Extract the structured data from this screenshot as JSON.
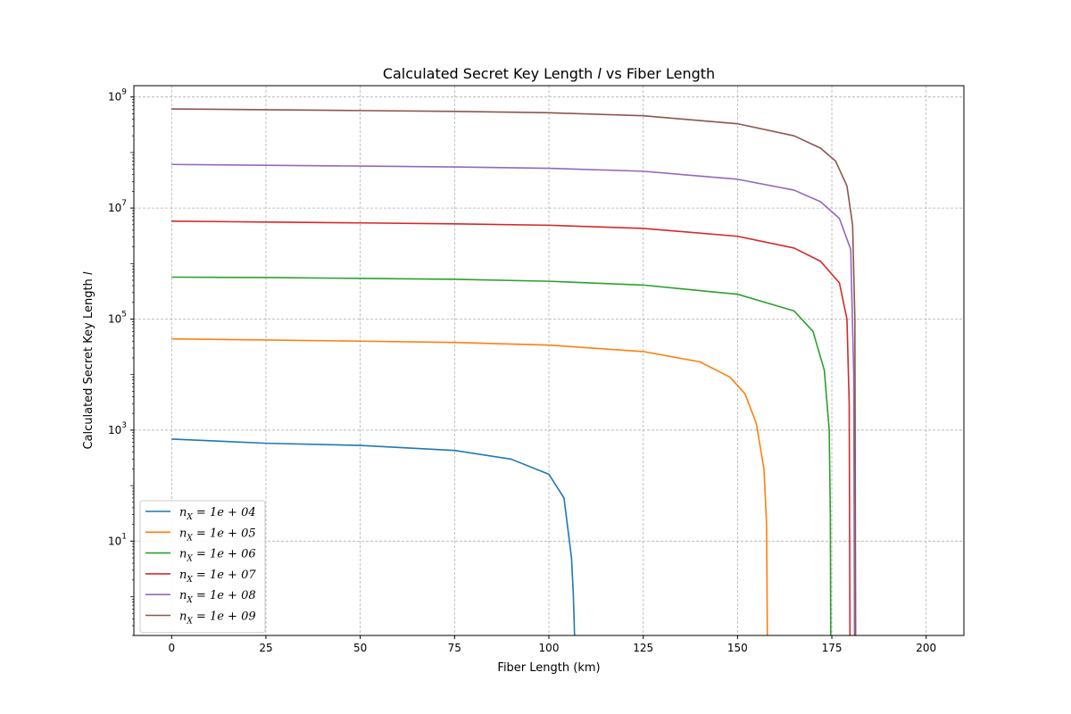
{
  "chart_data": {
    "type": "line",
    "title": "Calculated Secret Key Length l vs Fiber Length",
    "xlabel": "Fiber Length (km)",
    "ylabel": "Calculated Secret Key Length l",
    "x_scale": "linear",
    "y_scale": "log",
    "xlim": [
      -10,
      210
    ],
    "ylim": [
      0.2,
      1600000000.0
    ],
    "x_ticks": [
      0,
      25,
      50,
      75,
      100,
      125,
      150,
      175,
      200
    ],
    "x_tick_labels": [
      "0",
      "25",
      "50",
      "75",
      "100",
      "125",
      "150",
      "175",
      "200"
    ],
    "y_ticks": [
      10,
      1000,
      100000,
      10000000,
      1000000000
    ],
    "y_tick_labels": [
      {
        "base": "10",
        "exp": "1"
      },
      {
        "base": "10",
        "exp": "3"
      },
      {
        "base": "10",
        "exp": "5"
      },
      {
        "base": "10",
        "exp": "7"
      },
      {
        "base": "10",
        "exp": "9"
      }
    ],
    "grid": true,
    "legend_position": "lower-left",
    "series": [
      {
        "name": "n_X = 1e + 04",
        "color": "#1f77b4",
        "x": [
          0,
          25,
          50,
          75,
          90,
          100,
          104,
          106,
          106.5,
          106.8
        ],
        "y": [
          690,
          580,
          530,
          430,
          300,
          160,
          60,
          5,
          1,
          0.2
        ]
      },
      {
        "name": "n_X = 1e + 05",
        "color": "#ff7f0e",
        "x": [
          0,
          25,
          50,
          75,
          100,
          125,
          140,
          148,
          152,
          155,
          157,
          157.7,
          157.9
        ],
        "y": [
          44000,
          42000,
          40000,
          38000,
          34000,
          26000,
          17000,
          9000,
          4500,
          1300,
          200,
          20,
          0.2
        ]
      },
      {
        "name": "n_X = 1e + 06",
        "color": "#2ca02c",
        "x": [
          0,
          25,
          50,
          75,
          100,
          125,
          150,
          165,
          170,
          173,
          174.3,
          174.6,
          174.7
        ],
        "y": [
          570000,
          560000,
          540000,
          520000,
          480000,
          410000,
          280000,
          140000,
          60000,
          12000,
          1000,
          30,
          0.2
        ]
      },
      {
        "name": "n_X = 1e + 07",
        "color": "#d62728",
        "x": [
          0,
          25,
          50,
          75,
          100,
          125,
          150,
          165,
          172,
          177,
          179,
          179.6,
          179.8
        ],
        "y": [
          5800000,
          5600000,
          5400000,
          5200000,
          4900000,
          4300000,
          3100000,
          1900000,
          1100000,
          450000,
          100000,
          3000,
          0.2
        ]
      },
      {
        "name": "n_X = 1e + 08",
        "color": "#9467bd",
        "x": [
          0,
          25,
          50,
          75,
          100,
          125,
          150,
          165,
          172,
          177,
          180,
          180.8,
          181.0
        ],
        "y": [
          61000000,
          59000000,
          57000000,
          55000000,
          52000000,
          46000000,
          33000000,
          21000000,
          13000000,
          6500000,
          1800000,
          10000,
          0.2
        ]
      },
      {
        "name": "n_X = 1e + 09",
        "color": "#8c564b",
        "x": [
          0,
          25,
          50,
          75,
          100,
          125,
          150,
          165,
          172,
          176,
          179,
          180.5,
          181.1,
          181.3
        ],
        "y": [
          610000000,
          590000000,
          570000000,
          550000000,
          520000000,
          460000000,
          330000000,
          200000000,
          120000000,
          70000000,
          25000000,
          5000000,
          100000,
          0.2
        ]
      }
    ]
  }
}
